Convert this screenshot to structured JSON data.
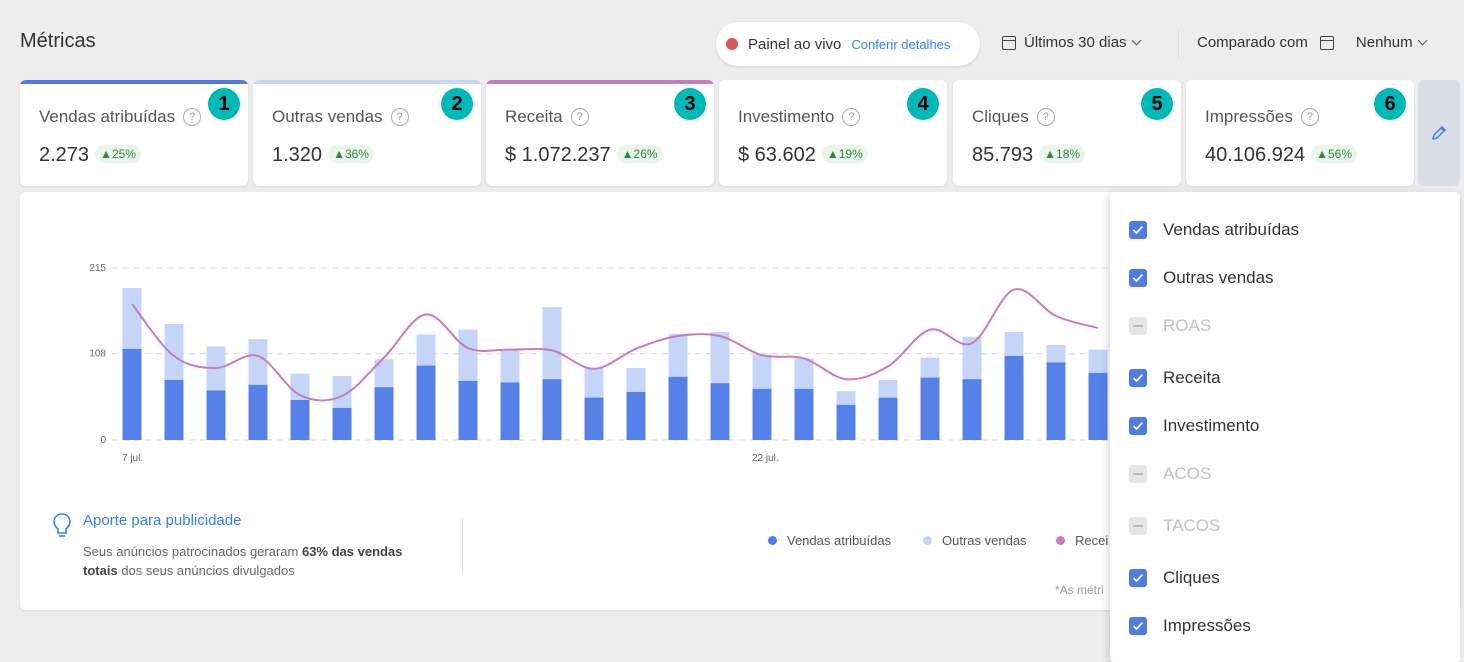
{
  "header": {
    "title": "Métricas",
    "live_label": "Painel ao vivo",
    "live_link": "Conferir detalhes",
    "date_range": "Últimos 30 dias",
    "compare_label": "Comparado com",
    "compare_value": "Nenhum"
  },
  "cards": [
    {
      "name": "Vendas atribuídas",
      "value": "2.273",
      "delta": "▲25%",
      "number": "1",
      "color": "#4e7be6"
    },
    {
      "name": "Outras vendas",
      "value": "1.320",
      "delta": "▲36%",
      "number": "2",
      "color": "#c5d5f7"
    },
    {
      "name": "Receita",
      "value": "$ 1.072.237",
      "delta": "▲26%",
      "number": "3",
      "color": "#c77dbb"
    },
    {
      "name": "Investimento",
      "value": "$ 63.602",
      "delta": "▲19%",
      "number": "4",
      "color": ""
    },
    {
      "name": "Cliques",
      "value": "85.793",
      "delta": "▲18%",
      "number": "5",
      "color": ""
    },
    {
      "name": "Impressões",
      "value": "40.106.924",
      "delta": "▲56%",
      "number": "6",
      "color": ""
    }
  ],
  "insight": {
    "title": "Aporte para publicidade",
    "text_1": "Seus anúncios patrocinados geraram ",
    "text_bold_1": "63% das vendas",
    "text_bold_2": "totais",
    "text_2": " dos seus anúncios divulgados"
  },
  "legend": [
    "Vendas atribuídas",
    "Outras vendas",
    "Recei"
  ],
  "footnote": "*As métri",
  "dropdown": [
    {
      "label": "Vendas atribuídas",
      "checked": true
    },
    {
      "label": "Outras vendas",
      "checked": true
    },
    {
      "label": "ROAS",
      "checked": false
    },
    {
      "label": "Receita",
      "checked": true
    },
    {
      "label": "Investimento",
      "checked": true
    },
    {
      "label": "ACOS",
      "checked": false
    },
    {
      "label": "TACOS",
      "checked": false
    },
    {
      "label": "Cliques",
      "checked": true
    },
    {
      "label": "Impressões",
      "checked": true
    }
  ],
  "chart_data": {
    "type": "bar",
    "colors": {
      "vendas": "#5581e8",
      "outras": "#c5d5f7",
      "receita": "#c77dbb"
    },
    "y_ticks": [
      "215",
      "108",
      "0"
    ],
    "ylim": [
      0,
      215
    ],
    "x_tick_labels": [
      {
        "index": 0,
        "label": "7 jul."
      },
      {
        "index": 15,
        "label": "22 jul."
      }
    ],
    "series": [
      {
        "name": "Vendas atribuídas",
        "values": [
          114,
          75,
          62,
          69,
          50,
          40,
          66,
          93,
          74,
          72,
          76,
          53,
          60,
          79,
          71,
          64,
          64,
          44,
          53,
          78,
          76,
          105,
          97,
          84
        ]
      },
      {
        "name": "Outras vendas",
        "values": [
          76,
          70,
          55,
          57,
          33,
          40,
          35,
          39,
          64,
          40,
          90,
          37,
          30,
          54,
          64,
          43,
          38,
          17,
          22,
          25,
          53,
          30,
          22,
          29
        ]
      },
      {
        "name": "Receita",
        "values": [
          170,
          105,
          90,
          105,
          56,
          55,
          103,
          157,
          115,
          113,
          112,
          89,
          114,
          130,
          130,
          106,
          102,
          76,
          92,
          138,
          121,
          188,
          155,
          140
        ]
      }
    ]
  }
}
